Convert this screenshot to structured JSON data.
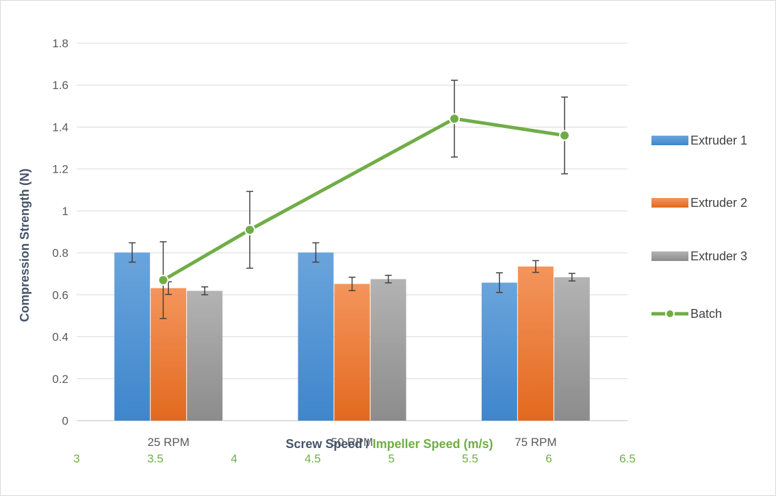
{
  "chart_data": {
    "type": "bar",
    "categories": [
      "25 RPM",
      "50 RPM",
      "75 RPM"
    ],
    "series": [
      {
        "name": "Extruder 1",
        "values": [
          0.802,
          0.802,
          0.658
        ],
        "errors": [
          0.046,
          0.046,
          0.047
        ],
        "color_top": "#6aa4dc",
        "color_bottom": "#3f86cc"
      },
      {
        "name": "Extruder 2",
        "values": [
          0.632,
          0.652,
          0.735
        ],
        "errors": [
          0.03,
          0.032,
          0.028
        ],
        "color_top": "#f4955c",
        "color_bottom": "#e2691f"
      },
      {
        "name": "Extruder 3",
        "values": [
          0.619,
          0.675,
          0.684
        ],
        "errors": [
          0.019,
          0.018,
          0.018
        ],
        "color_top": "#b3b3b3",
        "color_bottom": "#8c8c8c"
      }
    ],
    "line_series": {
      "name": "Batch",
      "x": [
        3.55,
        4.1,
        5.4,
        6.1
      ],
      "y": [
        0.67,
        0.91,
        1.44,
        1.36
      ],
      "errors": [
        0.183,
        0.183,
        0.183,
        0.183
      ],
      "color": "#70ad47"
    },
    "y_ticks": [
      "0",
      "0.2",
      "0.4",
      "0.6",
      "0.8",
      "1",
      "1.2",
      "1.4",
      "1.6",
      "1.8"
    ],
    "ylim": [
      0,
      1.8
    ],
    "x2_ticks": [
      "3",
      "3.5",
      "4",
      "4.5",
      "5",
      "5.5",
      "6",
      "6.5"
    ],
    "x2lim": [
      3,
      6.5
    ],
    "ylabel": "Compression Strength (N)",
    "xlabel_part1": "Screw Speed / ",
    "xlabel_part2": "Impeller Speed (m/s)",
    "grid": true,
    "legend_position": "right",
    "colors": {
      "axis_text": "#595959",
      "axis_title": "#44546a",
      "secondary_axis": "#70ad47",
      "grid": "#d9d9d9",
      "error_bar": "#404040"
    }
  }
}
